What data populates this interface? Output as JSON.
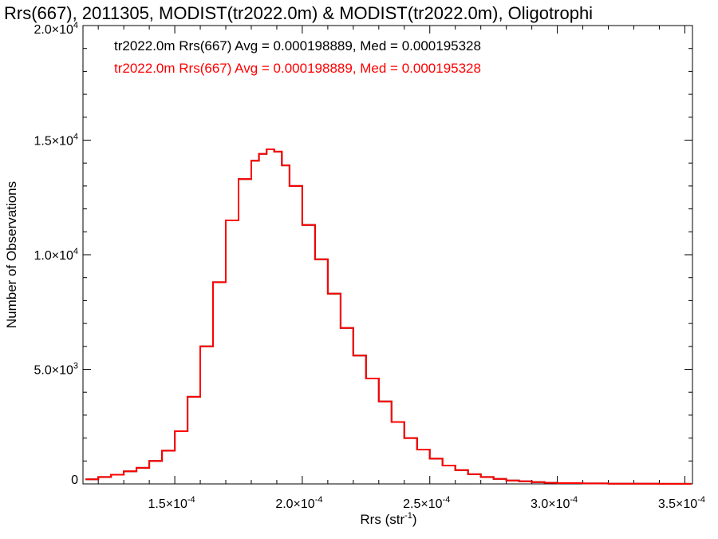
{
  "chart_data": {
    "type": "histogram",
    "title": "Rrs(667), 2011305, MODIST(tr2022.0m) & MODIST(tr2022.0m), Oligotrophi",
    "xlabel": "Rrs (str",
    "xlabel_exp": "-1",
    "xlabel_suffix": ")",
    "ylabel": "Number of Observations",
    "xlim": [
      0.000114,
      0.000353
    ],
    "ylim": [
      0,
      20000
    ],
    "xticks": [
      {
        "value": 0.00015,
        "mant": "1.5",
        "exp": "-4"
      },
      {
        "value": 0.0002,
        "mant": "2.0",
        "exp": "-4"
      },
      {
        "value": 0.00025,
        "mant": "2.5",
        "exp": "-4"
      },
      {
        "value": 0.0003,
        "mant": "3.0",
        "exp": "-4"
      },
      {
        "value": 0.00035,
        "mant": "3.5",
        "exp": "-4"
      }
    ],
    "yticks": [
      {
        "value": 0,
        "mant": "0",
        "exp": ""
      },
      {
        "value": 5000,
        "mant": "5.0",
        "exp": "3"
      },
      {
        "value": 10000,
        "mant": "1.0",
        "exp": "4"
      },
      {
        "value": 15000,
        "mant": "1.5",
        "exp": "4"
      },
      {
        "value": 20000,
        "mant": "2.0",
        "exp": "4"
      }
    ],
    "annotations": [
      {
        "text": "tr2022.0m Rrs(667) Avg = 0.000198889, Med = 0.000195328",
        "color": "#000000"
      },
      {
        "text": "tr2022.0m Rrs(667) Avg = 0.000198889, Med = 0.000195328",
        "color": "#ff0000"
      }
    ],
    "series": [
      {
        "color": "#000000",
        "x": [
          0.000115,
          0.00012,
          0.000125,
          0.00013,
          0.000135,
          0.00014,
          0.000145,
          0.00015,
          0.000155,
          0.00016,
          0.000165,
          0.00017,
          0.000175,
          0.00018,
          0.000183,
          0.000186,
          0.000189,
          0.000192,
          0.000195,
          0.0002,
          0.000205,
          0.00021,
          0.000215,
          0.00022,
          0.000225,
          0.00023,
          0.000235,
          0.00024,
          0.000245,
          0.00025,
          0.000255,
          0.00026,
          0.000265,
          0.00027,
          0.000275,
          0.00028,
          0.000285,
          0.00029,
          0.000295,
          0.0003,
          0.00031,
          0.00032,
          0.00033,
          0.00034,
          0.00035
        ],
        "y": [
          200,
          300,
          400,
          550,
          700,
          1000,
          1450,
          2300,
          3800,
          6000,
          8800,
          11500,
          13300,
          14100,
          14400,
          14600,
          14500,
          13900,
          13000,
          11300,
          9800,
          8300,
          6800,
          5600,
          4600,
          3600,
          2700,
          2000,
          1500,
          1100,
          800,
          600,
          420,
          300,
          220,
          150,
          110,
          75,
          50,
          35,
          20,
          12,
          8,
          5,
          3
        ]
      },
      {
        "color": "#ff0000",
        "x": [
          0.000115,
          0.00012,
          0.000125,
          0.00013,
          0.000135,
          0.00014,
          0.000145,
          0.00015,
          0.000155,
          0.00016,
          0.000165,
          0.00017,
          0.000175,
          0.00018,
          0.000183,
          0.000186,
          0.000189,
          0.000192,
          0.000195,
          0.0002,
          0.000205,
          0.00021,
          0.000215,
          0.00022,
          0.000225,
          0.00023,
          0.000235,
          0.00024,
          0.000245,
          0.00025,
          0.000255,
          0.00026,
          0.000265,
          0.00027,
          0.000275,
          0.00028,
          0.000285,
          0.00029,
          0.000295,
          0.0003,
          0.00031,
          0.00032,
          0.00033,
          0.00034,
          0.00035
        ],
        "y": [
          200,
          300,
          400,
          550,
          700,
          1000,
          1450,
          2300,
          3800,
          6000,
          8800,
          11500,
          13300,
          14100,
          14400,
          14600,
          14500,
          13900,
          13000,
          11300,
          9800,
          8300,
          6800,
          5600,
          4600,
          3600,
          2700,
          2000,
          1500,
          1100,
          800,
          600,
          420,
          300,
          220,
          150,
          110,
          75,
          50,
          35,
          20,
          12,
          8,
          5,
          3
        ]
      }
    ]
  }
}
